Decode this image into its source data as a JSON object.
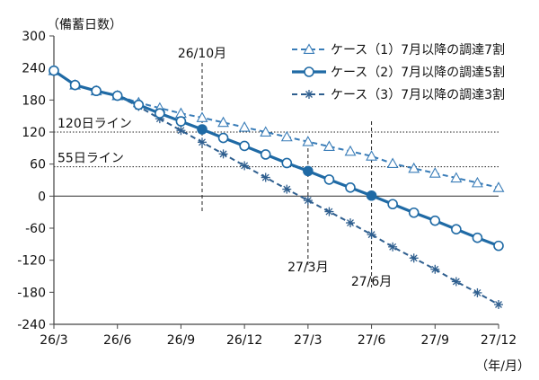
{
  "chart_data": {
    "type": "line",
    "title": "",
    "ylabel": "（備蓄日数）",
    "xlabel": "（年/月）",
    "ylim": [
      -240,
      300
    ],
    "yticks": [
      300,
      240,
      180,
      120,
      60,
      0,
      -60,
      -120,
      -180,
      -240
    ],
    "xticks": [
      "26/3",
      "26/6",
      "26/9",
      "26/12",
      "27/3",
      "27/6",
      "27/9",
      "27/12"
    ],
    "x": [
      0,
      1,
      2,
      3,
      4,
      5,
      6,
      7,
      8,
      9,
      10,
      11,
      12,
      13,
      14,
      15,
      16,
      17,
      18,
      19,
      20,
      21
    ],
    "grid": false,
    "legend_position": "top-right",
    "series": [
      {
        "name": "ケース（1）7月以降の調達7割",
        "color": "#3a7db8",
        "marker": "triangle",
        "dash": true,
        "values": [
          235,
          208,
          197,
          188,
          175,
          165,
          155,
          147,
          138,
          129,
          120,
          111,
          102,
          93,
          84,
          75,
          61,
          52,
          43,
          34,
          25,
          16
        ]
      },
      {
        "name": "ケース（2）7月以降の調達5割",
        "color": "#1f6aa5",
        "marker": "circle",
        "dash": false,
        "values": [
          235,
          208,
          197,
          188,
          171,
          155,
          140,
          125,
          109,
          94,
          78,
          62,
          47,
          31,
          16,
          1,
          -15,
          -31,
          -46,
          -62,
          -78,
          -93
        ]
      },
      {
        "name": "ケース（3）7月以降の調達3割",
        "color": "#2f5f8f",
        "marker": "asterisk",
        "dash": true,
        "values": [
          235,
          208,
          197,
          188,
          168,
          145,
          123,
          101,
          79,
          57,
          35,
          13,
          -8,
          -29,
          -50,
          -72,
          -95,
          -116,
          -137,
          -160,
          -181,
          -203
        ]
      }
    ],
    "reference_lines": [
      {
        "label": "120日ライン",
        "y": 120
      },
      {
        "label": "55日ライン",
        "y": 55
      }
    ],
    "annotations": [
      {
        "label": "26/10月",
        "x": 7,
        "y": 125
      },
      {
        "label": "27/3月",
        "x": 12,
        "y": 47
      },
      {
        "label": "27/6月",
        "x": 15,
        "y": 1
      }
    ]
  }
}
